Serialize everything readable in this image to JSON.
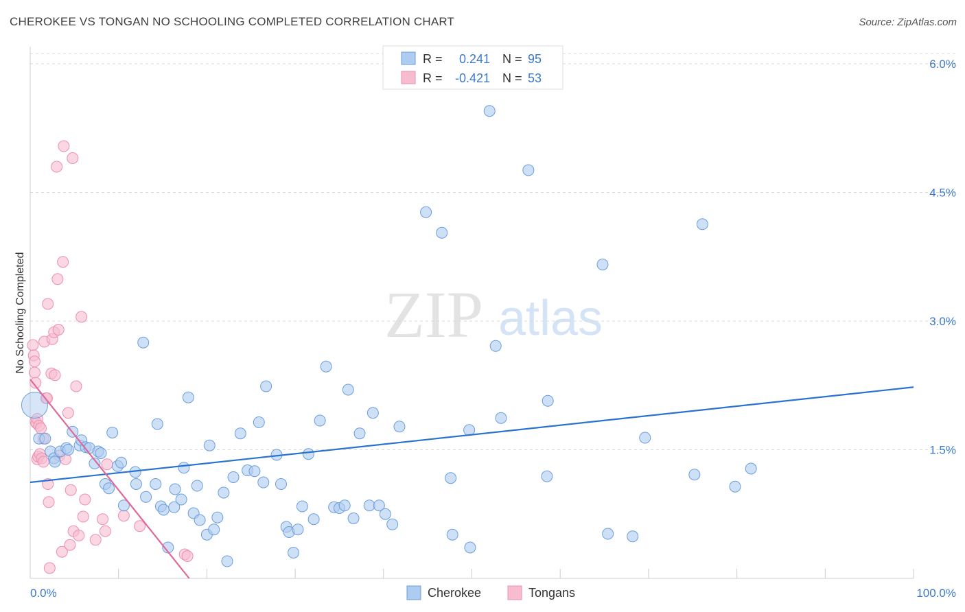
{
  "title": "CHEROKEE VS TONGAN NO SCHOOLING COMPLETED CORRELATION CHART",
  "source": "Source: ZipAtlas.com",
  "watermark": {
    "zip": "ZIP",
    "atlas": "atlas"
  },
  "colors": {
    "cherokee_fill": "#aecbf0",
    "cherokee_stroke": "#6b9ede",
    "cherokee_line": "#2a72d0",
    "tongan_fill": "#f7bcd0",
    "tongan_stroke": "#ec8fb1",
    "tongan_line": "#e0679a",
    "value_text": "#3b78c9",
    "grid": "#d9d9d9"
  },
  "legend": {
    "rows": [
      {
        "r_label": "R =",
        "r_value": "0.241",
        "n_label": "N =",
        "n_value": "95"
      },
      {
        "r_label": "R =",
        "r_value": "-0.421",
        "n_label": "N =",
        "n_value": "53"
      }
    ]
  },
  "chart_data": {
    "type": "scatter",
    "title": "CHEROKEE VS TONGAN NO SCHOOLING COMPLETED CORRELATION CHART",
    "xlabel": "",
    "ylabel": "No Schooling Completed",
    "xlim": [
      0,
      100
    ],
    "ylim": [
      0,
      6.2
    ],
    "x_tick_labels": [
      "0.0%",
      "100.0%"
    ],
    "y_ticks": [
      1.5,
      3.0,
      4.5,
      6.0
    ],
    "y_tick_labels": [
      "1.5%",
      "3.0%",
      "4.5%",
      "6.0%"
    ],
    "grid": true,
    "legend_position": "bottom-center",
    "series": [
      {
        "name": "Cherokee",
        "trend": {
          "x": [
            0,
            100
          ],
          "y": [
            1.12,
            2.23
          ]
        },
        "points": [
          [
            0.5,
            2.02
          ],
          [
            1.0,
            1.63
          ],
          [
            1.7,
            1.63
          ],
          [
            2.3,
            1.48
          ],
          [
            2.7,
            1.4
          ],
          [
            2.8,
            1.36
          ],
          [
            3.4,
            1.48
          ],
          [
            4.1,
            1.52
          ],
          [
            4.3,
            1.5
          ],
          [
            4.8,
            1.71
          ],
          [
            5.6,
            1.55
          ],
          [
            5.8,
            1.61
          ],
          [
            6.3,
            1.53
          ],
          [
            6.7,
            1.52
          ],
          [
            7.3,
            1.34
          ],
          [
            7.7,
            1.48
          ],
          [
            8.0,
            1.46
          ],
          [
            8.5,
            1.1
          ],
          [
            8.9,
            1.05
          ],
          [
            9.3,
            1.7
          ],
          [
            9.9,
            1.31
          ],
          [
            10.3,
            1.35
          ],
          [
            10.6,
            0.85
          ],
          [
            11.9,
            1.24
          ],
          [
            12.0,
            1.1
          ],
          [
            12.8,
            2.75
          ],
          [
            13.1,
            0.95
          ],
          [
            14.2,
            1.1
          ],
          [
            14.4,
            1.8
          ],
          [
            14.8,
            0.84
          ],
          [
            15.1,
            0.8
          ],
          [
            15.6,
            0.36
          ],
          [
            16.3,
            0.83
          ],
          [
            16.4,
            1.04
          ],
          [
            17.1,
            0.92
          ],
          [
            17.4,
            1.29
          ],
          [
            17.9,
            2.11
          ],
          [
            18.5,
            0.76
          ],
          [
            18.9,
            1.08
          ],
          [
            19.2,
            0.68
          ],
          [
            20.0,
            0.51
          ],
          [
            20.3,
            1.55
          ],
          [
            20.8,
            0.57
          ],
          [
            21.2,
            0.71
          ],
          [
            21.9,
            1.0
          ],
          [
            22.3,
            0.2
          ],
          [
            23.0,
            1.18
          ],
          [
            23.8,
            1.69
          ],
          [
            24.6,
            1.26
          ],
          [
            25.4,
            1.25
          ],
          [
            25.9,
            1.82
          ],
          [
            26.4,
            1.12
          ],
          [
            26.7,
            2.24
          ],
          [
            27.9,
            1.44
          ],
          [
            28.4,
            1.1
          ],
          [
            29.0,
            0.6
          ],
          [
            29.3,
            0.54
          ],
          [
            29.8,
            0.3
          ],
          [
            30.3,
            0.57
          ],
          [
            30.8,
            0.84
          ],
          [
            31.5,
            1.45
          ],
          [
            32.1,
            0.69
          ],
          [
            32.8,
            1.84
          ],
          [
            33.5,
            2.47
          ],
          [
            34.4,
            0.83
          ],
          [
            35.0,
            0.82
          ],
          [
            35.6,
            0.85
          ],
          [
            36.0,
            2.2
          ],
          [
            36.6,
            0.7
          ],
          [
            37.3,
            1.69
          ],
          [
            38.4,
            0.85
          ],
          [
            38.8,
            1.93
          ],
          [
            39.5,
            0.85
          ],
          [
            40.2,
            0.75
          ],
          [
            41.0,
            0.63
          ],
          [
            41.8,
            1.77
          ],
          [
            44.8,
            4.27
          ],
          [
            46.6,
            4.03
          ],
          [
            47.6,
            1.17
          ],
          [
            47.8,
            0.51
          ],
          [
            49.7,
            1.73
          ],
          [
            49.8,
            0.36
          ],
          [
            52.0,
            5.45
          ],
          [
            52.7,
            2.71
          ],
          [
            53.3,
            1.87
          ],
          [
            56.4,
            4.76
          ],
          [
            58.5,
            1.19
          ],
          [
            58.6,
            2.07
          ],
          [
            64.8,
            3.66
          ],
          [
            65.4,
            0.52
          ],
          [
            68.2,
            0.49
          ],
          [
            69.6,
            1.64
          ],
          [
            75.2,
            1.21
          ],
          [
            76.1,
            4.13
          ],
          [
            79.8,
            1.07
          ],
          [
            81.6,
            1.28
          ]
        ]
      },
      {
        "name": "Tongans",
        "trend": {
          "x": [
            0,
            18
          ],
          "y": [
            2.32,
            0.0
          ]
        },
        "points": [
          [
            0.3,
            2.72
          ],
          [
            0.4,
            2.6
          ],
          [
            0.5,
            2.53
          ],
          [
            0.5,
            2.4
          ],
          [
            0.6,
            2.28
          ],
          [
            0.6,
            1.83
          ],
          [
            0.7,
            1.81
          ],
          [
            0.8,
            1.86
          ],
          [
            0.8,
            1.39
          ],
          [
            0.9,
            1.42
          ],
          [
            1.0,
            1.78
          ],
          [
            1.1,
            1.45
          ],
          [
            1.2,
            1.75
          ],
          [
            1.3,
            1.4
          ],
          [
            1.5,
            1.63
          ],
          [
            1.5,
            1.36
          ],
          [
            1.6,
            2.76
          ],
          [
            1.8,
            2.1
          ],
          [
            1.9,
            2.1
          ],
          [
            2.0,
            3.2
          ],
          [
            2.0,
            1.1
          ],
          [
            2.1,
            0.89
          ],
          [
            2.2,
            0.12
          ],
          [
            2.4,
            2.39
          ],
          [
            2.5,
            2.79
          ],
          [
            2.7,
            2.87
          ],
          [
            2.8,
            2.37
          ],
          [
            3.0,
            4.8
          ],
          [
            3.1,
            3.49
          ],
          [
            3.2,
            2.9
          ],
          [
            3.3,
            1.43
          ],
          [
            3.6,
            0.31
          ],
          [
            3.7,
            3.69
          ],
          [
            3.8,
            5.04
          ],
          [
            4.0,
            1.39
          ],
          [
            4.3,
            1.93
          ],
          [
            4.5,
            0.39
          ],
          [
            4.6,
            1.03
          ],
          [
            4.8,
            4.9
          ],
          [
            4.9,
            0.55
          ],
          [
            5.2,
            2.24
          ],
          [
            5.5,
            0.5
          ],
          [
            5.8,
            3.05
          ],
          [
            6.0,
            0.72
          ],
          [
            6.2,
            0.92
          ],
          [
            7.4,
            0.45
          ],
          [
            8.2,
            0.69
          ],
          [
            8.5,
            0.55
          ],
          [
            8.7,
            1.33
          ],
          [
            10.6,
            0.73
          ],
          [
            12.4,
            0.61
          ],
          [
            17.5,
            0.28
          ],
          [
            17.8,
            0.26
          ]
        ]
      }
    ]
  },
  "bottom_legend": [
    "Cherokee",
    "Tongans"
  ]
}
